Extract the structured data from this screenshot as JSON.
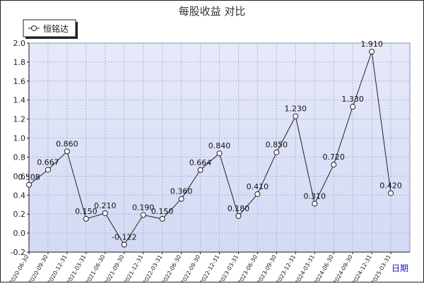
{
  "chart_data": {
    "type": "line",
    "title": "每股收益 对比",
    "xlabel": "日期",
    "ylabel": "",
    "ylim": [
      -0.2,
      2.0
    ],
    "yticks": [
      "2.0",
      "1.8",
      "1.6",
      "1.4",
      "1.2",
      "1.0",
      "0.8",
      "0.6",
      "0.4",
      "0.2",
      "0.0",
      "-0.2"
    ],
    "grid": true,
    "legend_position": "top-left",
    "categories": [
      "2020-06-30",
      "2020-09-30",
      "2020-12-31",
      "2021-03-31",
      "2021-06-30",
      "2021-09-30",
      "2021-12-31",
      "2022-03-31",
      "2022-06-30",
      "2022-09-30",
      "2022-12-31",
      "2023-03-31",
      "2023-06-30",
      "2023-09-30",
      "2023-12-31",
      "2024-03-31",
      "2024-06-30",
      "2024-09-30",
      "2024-12-31",
      "2025-03-31"
    ],
    "series": [
      {
        "name": "恒铭达",
        "values": [
          0.508,
          0.667,
          0.86,
          0.15,
          0.21,
          -0.122,
          0.19,
          0.15,
          0.36,
          0.664,
          0.84,
          0.18,
          0.41,
          0.85,
          1.23,
          0.31,
          0.72,
          1.33,
          1.91,
          0.42
        ],
        "labels": [
          "0.508",
          "0.667",
          "0.860",
          "0.150",
          "0.210",
          "-0.122",
          "0.190",
          "0.150",
          "0.360",
          "0.664",
          "0.840",
          "0.180",
          "0.410",
          "0.850",
          "1.230",
          "0.310",
          "0.720",
          "1.330",
          "1.910",
          "0.420"
        ]
      }
    ]
  },
  "colors": {
    "plot_top": "#e6e9f8",
    "plot_bottom": "#d4daf4",
    "grid": "#a9b4e0",
    "line": "#222222",
    "frame": "#1a1a1a"
  }
}
